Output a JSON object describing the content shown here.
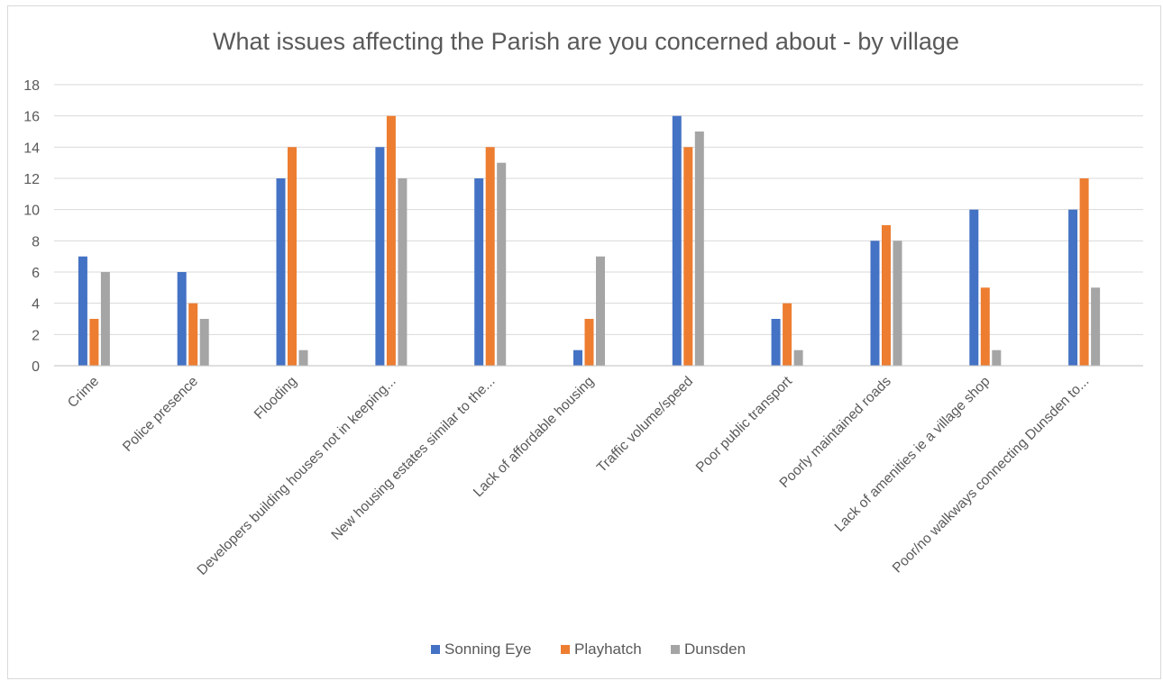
{
  "chart_data": {
    "type": "bar",
    "title": "What issues affecting the Parish are you concerned about - by village",
    "xlabel": "",
    "ylabel": "",
    "ylim": [
      0,
      18
    ],
    "yticks": [
      0,
      2,
      4,
      6,
      8,
      10,
      12,
      14,
      16,
      18
    ],
    "grid": true,
    "legend_position": "bottom",
    "categories": [
      "Crime",
      "Police presence",
      "Flooding",
      "Developers building houses not in keeping...",
      "New housing estates similar to the...",
      "Lack of affordable housing",
      "Traffic volume/speed",
      "Poor public transport",
      "Poorly maintained roads",
      "Lack of amenities ie a village shop",
      "Poor/no walkways connecting Dunsden to..."
    ],
    "series": [
      {
        "name": "Sonning Eye",
        "color": "#4472c4",
        "values": [
          7,
          6,
          12,
          14,
          12,
          1,
          16,
          3,
          8,
          10,
          10
        ]
      },
      {
        "name": "Playhatch",
        "color": "#ed7d31",
        "values": [
          3,
          4,
          14,
          16,
          14,
          3,
          14,
          4,
          9,
          5,
          12
        ]
      },
      {
        "name": "Dunsden",
        "color": "#a5a5a5",
        "values": [
          6,
          3,
          1,
          12,
          13,
          7,
          15,
          1,
          8,
          1,
          5
        ]
      }
    ]
  }
}
